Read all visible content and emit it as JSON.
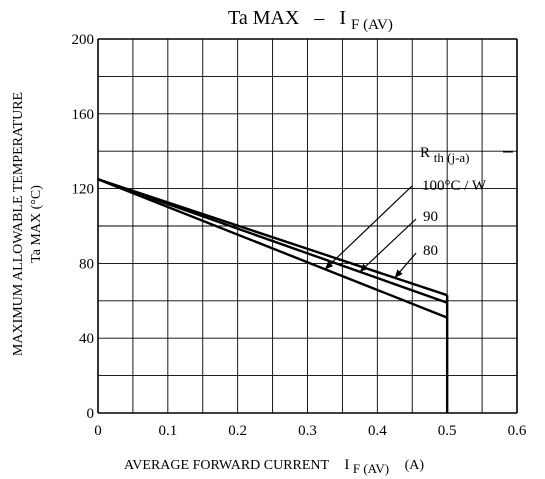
{
  "chart_data": {
    "type": "line",
    "title": {
      "main": "Ta MAX",
      "dash": "–",
      "var": "I",
      "sub": "F (AV)"
    },
    "xlabel": {
      "main": "AVERAGE FORWARD CURRENT",
      "var": "I",
      "sub": "F (AV)",
      "unit": "(A)"
    },
    "ylabel": {
      "line1": "MAXIMUM ALLOWABLE TEMPERATURE",
      "line2": "Ta MAX   (°C)"
    },
    "xlim": [
      0,
      0.6
    ],
    "ylim": [
      0,
      200
    ],
    "x_ticks": [
      0,
      0.1,
      0.2,
      0.3,
      0.4,
      0.5,
      0.6
    ],
    "x_tick_labels": [
      "0",
      "0.1",
      "0.2",
      "0.3",
      "0.4",
      "0.5",
      "0.6"
    ],
    "y_ticks": [
      0,
      40,
      80,
      120,
      160,
      200
    ],
    "y_tick_labels": [
      "0",
      "40",
      "80",
      "120",
      "160",
      "200"
    ],
    "x_minor_step": 0.05,
    "y_minor_step": 20,
    "grid": true,
    "legend_title": {
      "main": "R",
      "sub": "th (j-a)"
    },
    "series": [
      {
        "name": "100°C/W",
        "x": [
          0,
          0.5
        ],
        "y": [
          125,
          51
        ]
      },
      {
        "name": "90",
        "x": [
          0,
          0.5
        ],
        "y": [
          125,
          59
        ]
      },
      {
        "name": "80",
        "x": [
          0,
          0.5
        ],
        "y": [
          125,
          63
        ]
      }
    ],
    "cutoff": {
      "x": 0.5
    },
    "annotations": [
      {
        "text": "100°C / W",
        "series_index": 0,
        "anchor_x": 0.325
      },
      {
        "text": "90",
        "series_index": 1,
        "anchor_x": 0.375
      },
      {
        "text": "80",
        "series_index": 2,
        "anchor_x": 0.425
      }
    ]
  }
}
